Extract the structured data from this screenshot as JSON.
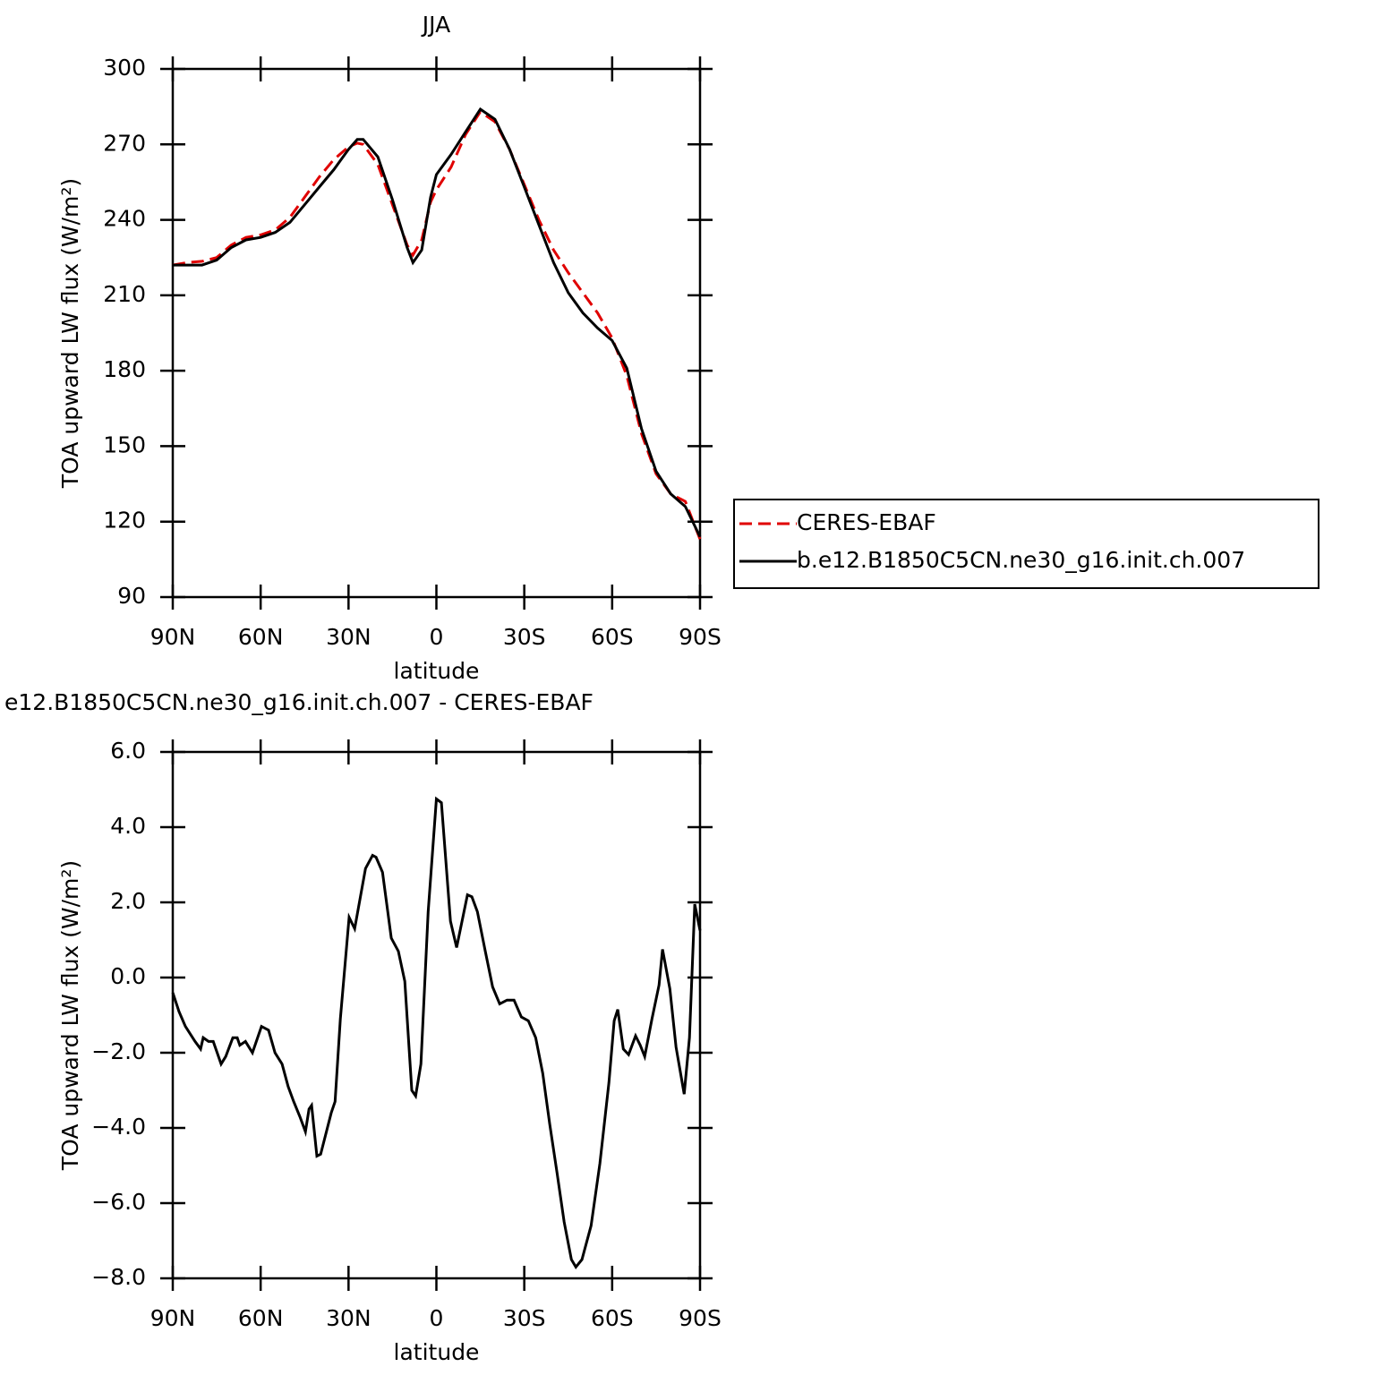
{
  "chart_data": [
    {
      "type": "line",
      "title": "JJA",
      "xlabel": "latitude",
      "ylabel": "TOA upward LW flux (W/m²)",
      "x": [
        90,
        85,
        80,
        75,
        70,
        65,
        60,
        55,
        50,
        45,
        40,
        35,
        30,
        27,
        25,
        20,
        15,
        10,
        8,
        5,
        2,
        0,
        -5,
        -10,
        -15,
        -20,
        -25,
        -30,
        -35,
        -40,
        -45,
        -50,
        -55,
        -60,
        -65,
        -70,
        -75,
        -80,
        -85,
        -90
      ],
      "series": [
        {
          "name": "CERES-EBAF",
          "color": "#e00000",
          "style": "dashed",
          "values": [
            222,
            223,
            223.5,
            225,
            230,
            233,
            234,
            236,
            241,
            249,
            257,
            264,
            269,
            270.5,
            270,
            262,
            246,
            230,
            226,
            232,
            247,
            252,
            261,
            274,
            283,
            279,
            268,
            254,
            240,
            228,
            219,
            211,
            203,
            193,
            178,
            155,
            139,
            131,
            128,
            113
          ]
        },
        {
          "name": "b.e12.B1850C5CN.ne30_g16.init.ch.007",
          "color": "#000000",
          "style": "solid",
          "values": [
            222,
            222,
            222,
            224,
            229,
            232,
            233,
            235,
            239,
            246,
            253,
            260,
            268,
            272,
            272,
            265,
            248,
            229,
            223,
            228,
            249,
            258,
            266,
            275,
            284,
            280,
            268,
            253,
            238,
            223,
            211,
            203,
            197,
            192,
            181,
            157,
            140,
            131,
            126,
            114
          ]
        }
      ],
      "xlim": [
        90,
        -90
      ],
      "xticks": [
        {
          "value": 90,
          "label": "90N"
        },
        {
          "value": 60,
          "label": "60N"
        },
        {
          "value": 30,
          "label": "30N"
        },
        0,
        {
          "value": -30,
          "label": "30S"
        },
        {
          "value": -60,
          "label": "60S"
        },
        {
          "value": -90,
          "label": "90S"
        }
      ],
      "ylim": [
        90,
        300
      ],
      "yticks": [
        90,
        120,
        150,
        180,
        210,
        240,
        270,
        300
      ],
      "legend": "right"
    },
    {
      "type": "line",
      "title": "e12.B1850C5CN.ne30_g16.init.ch.007 - CERES-EBAF",
      "xlabel": "latitude",
      "ylabel": "TOA upward LW flux (W/m²)",
      "x": [
        90,
        87.9,
        85.7,
        82.4,
        80.5,
        79.6,
        77.8,
        76.2,
        73.5,
        71.9,
        69.5,
        68,
        67.1,
        65.2,
        62.8,
        59.7,
        57.3,
        55.1,
        52.7,
        50.6,
        48.7,
        46.6,
        44.7,
        43.5,
        42.6,
        40.8,
        39.5,
        35.9,
        34.6,
        32.8,
        29.8,
        27.9,
        24.2,
        21.8,
        20.6,
        18.4,
        15.4,
        13,
        10.8,
        8.4,
        7.1,
        5.3,
        2.8,
        0,
        -1.7,
        -4.8,
        -6.9,
        -10.6,
        -12.1,
        -14,
        -16.7,
        -19.2,
        -21.6,
        -24.1,
        -26.5,
        -29,
        -31.4,
        -33.9,
        -36.3,
        -38.7,
        -41.2,
        -43.6,
        -46.1,
        -47.6,
        -49.7,
        -52.8,
        -55.8,
        -58.9,
        -60.7,
        -61.9,
        -63.8,
        -65.6,
        -68,
        -69.6,
        -71.1,
        -73.6,
        -76,
        -77.2,
        -79.7,
        -81.8,
        -84.6,
        -86.4,
        -88.2,
        -90
      ],
      "values": [
        -0.4,
        -0.9,
        -1.3,
        -1.7,
        -1.9,
        -1.6,
        -1.7,
        -1.7,
        -2.3,
        -2.1,
        -1.6,
        -1.6,
        -1.8,
        -1.7,
        -2.0,
        -1.3,
        -1.4,
        -2.0,
        -2.3,
        -2.9,
        -3.3,
        -3.7,
        -4.1,
        -3.5,
        -3.4,
        -4.75,
        -4.7,
        -3.6,
        -3.3,
        -1.1,
        1.6,
        1.3,
        2.9,
        3.25,
        3.2,
        2.8,
        1.05,
        0.7,
        -0.1,
        -3.0,
        -3.15,
        -2.3,
        1.75,
        4.75,
        4.65,
        1.5,
        0.8,
        2.2,
        2.15,
        1.75,
        0.7,
        -0.25,
        -0.7,
        -0.6,
        -0.6,
        -1.05,
        -1.15,
        -1.6,
        -2.55,
        -3.9,
        -5.2,
        -6.5,
        -7.5,
        -7.7,
        -7.5,
        -6.6,
        -4.95,
        -2.8,
        -1.15,
        -0.85,
        -1.9,
        -2.05,
        -1.55,
        -1.8,
        -2.1,
        -1.1,
        -0.2,
        0.75,
        -0.3,
        -1.85,
        -3.1,
        -1.6,
        1.95,
        1.25
      ],
      "color": "#000000",
      "style": "solid",
      "xlim": [
        90,
        -90
      ],
      "xticks": [
        {
          "value": 90,
          "label": "90N"
        },
        {
          "value": 60,
          "label": "60N"
        },
        {
          "value": 30,
          "label": "30N"
        },
        0,
        {
          "value": -30,
          "label": "30S"
        },
        {
          "value": -60,
          "label": "60S"
        },
        {
          "value": -90,
          "label": "90S"
        }
      ],
      "ylim": [
        -8,
        6
      ],
      "yticks": [
        {
          "value": -8,
          "label": "−8.0"
        },
        {
          "value": -6,
          "label": "−6.0"
        },
        {
          "value": -4,
          "label": "−4.0"
        },
        {
          "value": -2,
          "label": "−2.0"
        },
        {
          "value": 0,
          "label": "0.0"
        },
        {
          "value": 2,
          "label": "2.0"
        },
        {
          "value": 4,
          "label": "4.0"
        },
        {
          "value": 6,
          "label": "6.0"
        }
      ]
    }
  ]
}
